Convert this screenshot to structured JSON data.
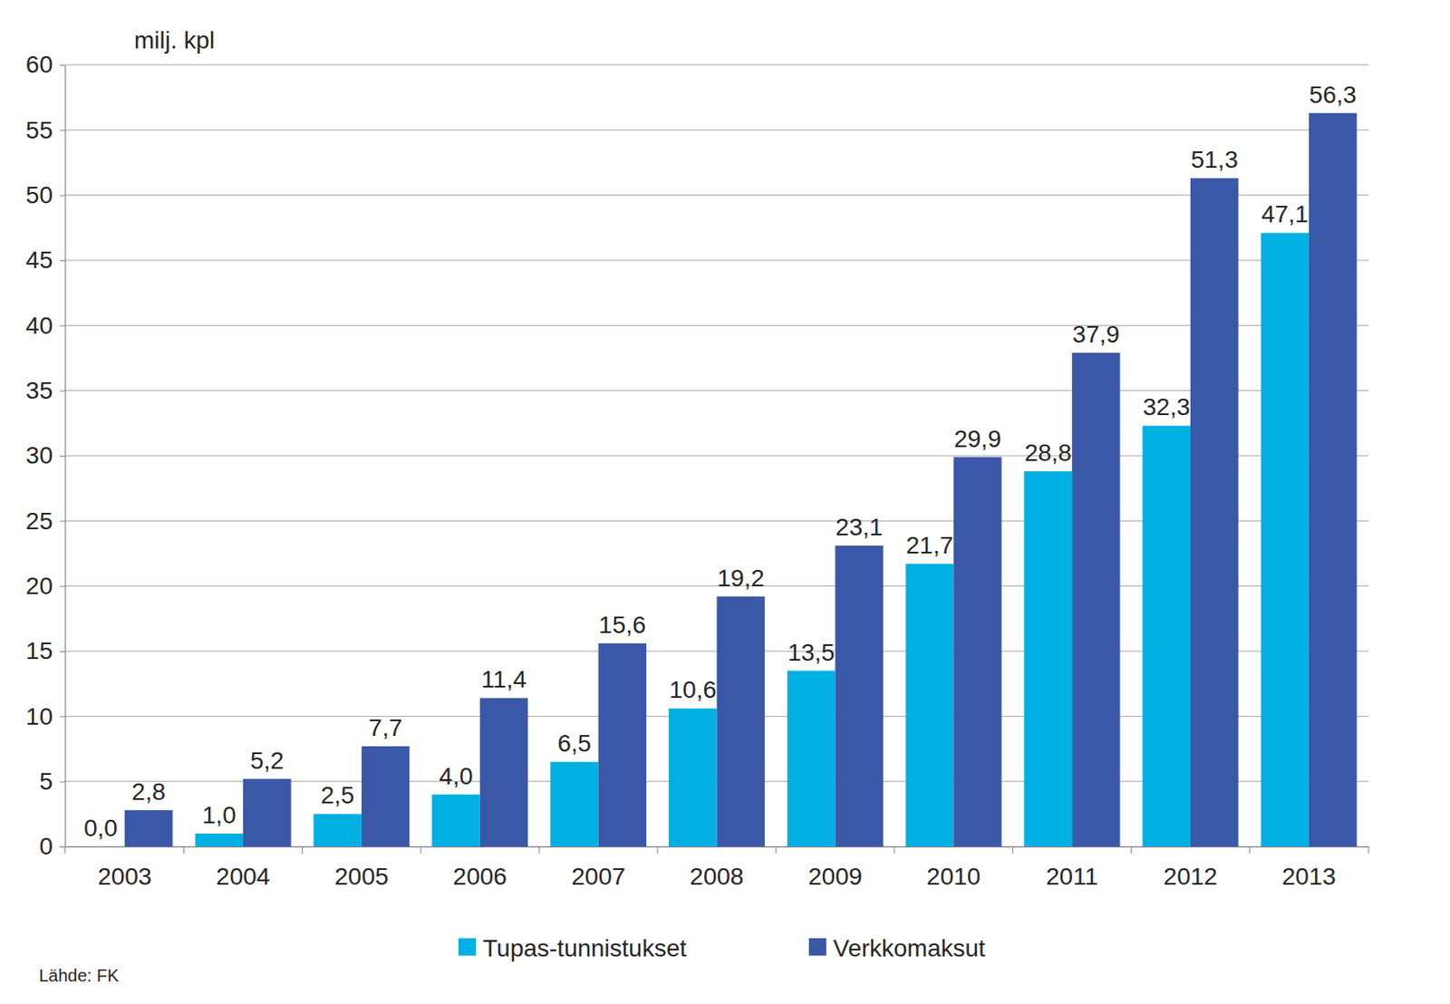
{
  "chart_data": {
    "type": "bar",
    "y_label": "milj. kpl",
    "source": "Lähde: FK",
    "categories": [
      "2003",
      "2004",
      "2005",
      "2006",
      "2007",
      "2008",
      "2009",
      "2010",
      "2011",
      "2012",
      "2013"
    ],
    "series": [
      {
        "name": "Tupas-tunnistukset",
        "color": "#00b0e3",
        "values": [
          0.0,
          1.0,
          2.5,
          4.0,
          6.5,
          10.6,
          13.5,
          21.7,
          28.8,
          32.3,
          47.1
        ],
        "value_labels": [
          "0,0",
          "1,0",
          "2,5",
          "4,0",
          "6,5",
          "10,6",
          "13,5",
          "21,7",
          "28,8",
          "32,3",
          "47,1"
        ]
      },
      {
        "name": "Verkkomaksut",
        "color": "#3b58a8",
        "values": [
          2.8,
          5.2,
          7.7,
          11.4,
          15.6,
          19.2,
          23.1,
          29.9,
          37.9,
          51.3,
          56.3
        ],
        "value_labels": [
          "2,8",
          "5,2",
          "7,7",
          "11,4",
          "15,6",
          "19,2",
          "23,1",
          "29,9",
          "37,9",
          "51,3",
          "56,3"
        ]
      }
    ],
    "ylim": [
      0,
      60
    ],
    "yticks": [
      0,
      5,
      10,
      15,
      20,
      25,
      30,
      35,
      40,
      45,
      50,
      55,
      60
    ],
    "grid": true,
    "data_labels": true,
    "legend": "bottom"
  }
}
